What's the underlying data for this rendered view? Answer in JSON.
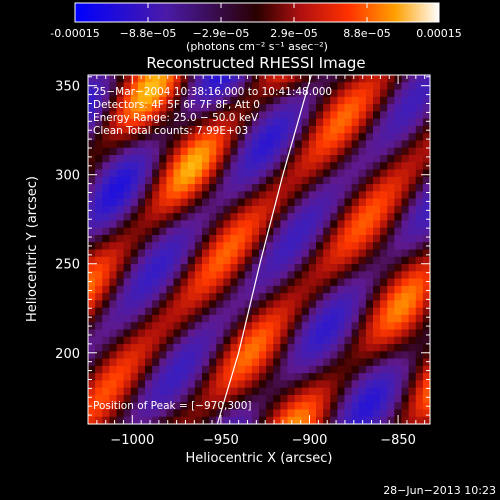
{
  "colorbar": {
    "ticks": [
      "-0.00015",
      "−8.8e−05",
      "−2.9e−05",
      "2.9e−05",
      "8.8e−05",
      "0.00015"
    ],
    "unit_label": "(photons cm⁻² s⁻¹ asec⁻²)",
    "range": [
      -0.00015,
      0.00015
    ]
  },
  "chart_data": {
    "type": "heatmap",
    "title": "Reconstructed RHESSI Image",
    "xlabel": "Heliocentric X (arcsec)",
    "ylabel": "Heliocentric Y (arcsec)",
    "xlim": [
      -1025,
      -832
    ],
    "ylim": [
      160,
      356
    ],
    "x_ticks": [
      "−1000",
      "−950",
      "−900",
      "−850"
    ],
    "x_tick_values": [
      -1000,
      -950,
      -900,
      -850
    ],
    "y_ticks": [
      "200",
      "250",
      "300",
      "350"
    ],
    "y_tick_values": [
      200,
      250,
      300,
      350
    ],
    "annotations": [
      "25−Mar−2004 10:38:16.000 to 10:41:48.000",
      "Detectors: 4F 5F 6F 7F 8F, Att 0",
      "Energy Range: 25.0 − 50.0 keV",
      "Clean     Total counts: 7.99E+03"
    ],
    "peak_label": "Position of Peak = [−970,300]",
    "peak": [
      -970,
      300
    ],
    "limb_curve": [
      [
        -952,
        160
      ],
      [
        -940,
        200
      ],
      [
        -928,
        250
      ],
      [
        -915,
        300
      ],
      [
        -899,
        356
      ]
    ],
    "grid": false
  },
  "timestamp": "28−Jun−2013 10:23"
}
